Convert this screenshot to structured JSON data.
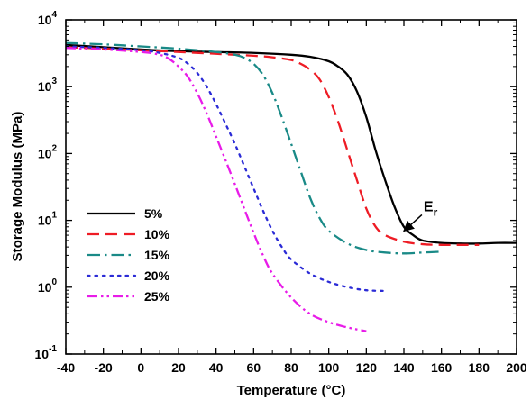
{
  "chart_data": {
    "type": "line",
    "xlabel": "Temperature (°C)",
    "ylabel": "Storage Modulus (MPa)",
    "xlim": [
      -40,
      200
    ],
    "ylim": [
      0.1,
      10000
    ],
    "yscale": "log",
    "xticks": [
      -40,
      -20,
      0,
      20,
      40,
      60,
      80,
      100,
      120,
      140,
      160,
      180,
      200
    ],
    "yticks": [
      {
        "base": "10",
        "exp": "-1",
        "value": 0.1
      },
      {
        "base": "10",
        "exp": "0",
        "value": 1
      },
      {
        "base": "10",
        "exp": "1",
        "value": 10
      },
      {
        "base": "10",
        "exp": "2",
        "value": 100
      },
      {
        "base": "10",
        "exp": "3",
        "value": 1000
      },
      {
        "base": "10",
        "exp": "4",
        "value": 10000
      }
    ],
    "grid": false,
    "legend_position": "bottom-left",
    "series": [
      {
        "name": "5%",
        "color": "#000000",
        "dash": "solid",
        "x": [
          -40,
          -20,
          0,
          20,
          40,
          60,
          80,
          90,
          100,
          105,
          110,
          115,
          120,
          125,
          130,
          135,
          140,
          145,
          150,
          160,
          170,
          180,
          190,
          200
        ],
        "y": [
          4200,
          3900,
          3600,
          3400,
          3300,
          3200,
          3000,
          2800,
          2400,
          2000,
          1500,
          850,
          350,
          110,
          40,
          16,
          8,
          6,
          5,
          4.6,
          4.5,
          4.5,
          4.6,
          4.6
        ]
      },
      {
        "name": "10%",
        "color": "#ee1c25",
        "dash": "dashed",
        "x": [
          -40,
          -20,
          0,
          20,
          40,
          60,
          70,
          80,
          85,
          90,
          95,
          100,
          105,
          110,
          115,
          120,
          125,
          130,
          140,
          150,
          160,
          170,
          180
        ],
        "y": [
          3900,
          3700,
          3500,
          3300,
          3100,
          2900,
          2750,
          2500,
          2200,
          1800,
          1300,
          700,
          300,
          110,
          40,
          15,
          8,
          6,
          4.8,
          4.4,
          4.3,
          4.3,
          4.3
        ]
      },
      {
        "name": "15%",
        "color": "#1a8a87",
        "dash": "dashdot",
        "x": [
          -40,
          -20,
          0,
          20,
          40,
          50,
          55,
          60,
          65,
          70,
          75,
          80,
          85,
          90,
          95,
          100,
          110,
          120,
          130,
          140,
          150,
          160
        ],
        "y": [
          4500,
          4300,
          4000,
          3700,
          3300,
          3000,
          2700,
          2200,
          1500,
          800,
          350,
          140,
          55,
          22,
          11,
          7,
          4.5,
          3.6,
          3.3,
          3.2,
          3.3,
          3.4
        ]
      },
      {
        "name": "20%",
        "color": "#2b2bd6",
        "dash": "dotted",
        "x": [
          -40,
          -20,
          0,
          10,
          20,
          25,
          30,
          35,
          40,
          45,
          50,
          55,
          60,
          65,
          70,
          75,
          80,
          90,
          100,
          110,
          120,
          130
        ],
        "y": [
          4000,
          3800,
          3500,
          3200,
          2700,
          2200,
          1600,
          1000,
          550,
          280,
          140,
          65,
          30,
          14,
          7,
          4,
          2.6,
          1.6,
          1.2,
          1.0,
          0.9,
          0.88
        ]
      },
      {
        "name": "25%",
        "color": "#e81ce8",
        "dash": "dashdotdot",
        "x": [
          -40,
          -20,
          0,
          10,
          15,
          20,
          25,
          30,
          35,
          40,
          45,
          50,
          55,
          60,
          65,
          70,
          80,
          90,
          100,
          110,
          120
        ],
        "y": [
          3800,
          3600,
          3300,
          3000,
          2600,
          2000,
          1400,
          800,
          400,
          180,
          80,
          35,
          15,
          6.5,
          3,
          1.6,
          0.7,
          0.4,
          0.3,
          0.25,
          0.22
        ]
      }
    ],
    "annotations": [
      {
        "text": "E",
        "subscript": "r",
        "arrow_to": {
          "x": 139,
          "y": 6.5
        }
      }
    ]
  }
}
